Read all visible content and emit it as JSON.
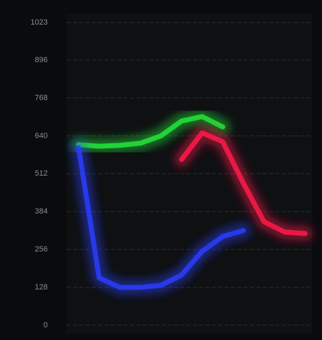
{
  "chart_data": {
    "type": "line",
    "categories": [
      null,
      null,
      null,
      null,
      null,
      null,
      null,
      null,
      null,
      null,
      null,
      null
    ],
    "series": [
      {
        "name": null,
        "color": "#22e63a",
        "values": [
          610,
          605,
          608,
          615,
          640,
          690,
          705,
          670,
          null,
          null,
          null,
          null
        ]
      },
      {
        "name": null,
        "color": "#ff1a4a",
        "values": [
          null,
          null,
          null,
          null,
          null,
          560,
          650,
          620,
          480,
          350,
          315,
          310
        ]
      },
      {
        "name": null,
        "color": "#2a3dff",
        "values": [
          600,
          160,
          128,
          128,
          135,
          170,
          250,
          300,
          320,
          null,
          null,
          null
        ]
      }
    ],
    "ylim": [
      0,
      1023
    ],
    "yticks": [
      0,
      128,
      256,
      384,
      512,
      640,
      768,
      896,
      1023
    ],
    "grid": true
  }
}
